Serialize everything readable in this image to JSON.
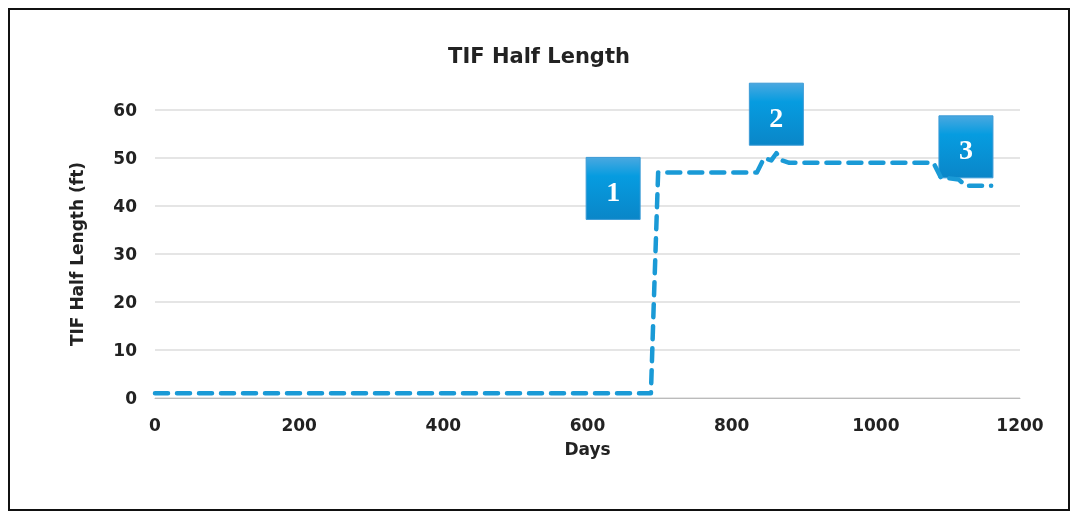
{
  "chart_data": {
    "type": "line",
    "title": "TIF Half Length",
    "xlabel": "Days",
    "ylabel": "TIF Half Length (ft)",
    "series": [
      {
        "color": "#1a9ad6",
        "x": [
          0,
          688,
          692,
          698,
          702,
          835,
          845,
          855,
          862,
          870,
          880,
          1080,
          1090,
          1115,
          1125,
          1160
        ],
        "values": [
          1,
          1,
          20,
          47,
          47,
          47,
          50,
          49.5,
          51,
          49.5,
          49,
          49,
          46,
          45.5,
          44.2,
          44.2
        ]
      }
    ],
    "xlim": [
      0,
      1200
    ],
    "xticks": [
      0,
      200,
      400,
      600,
      800,
      1000,
      1200
    ],
    "ylim": [
      0,
      60
    ],
    "yticks": [
      0,
      10,
      20,
      30,
      40,
      50,
      60
    ],
    "grid": "y",
    "marker": "none",
    "line_style": "dashed",
    "annotations": [
      {
        "text": "1",
        "x": 698,
        "y": 47
      },
      {
        "text": "2",
        "x": 862,
        "y": 51
      },
      {
        "text": "3",
        "x": 1125,
        "y": 44.2
      }
    ]
  }
}
